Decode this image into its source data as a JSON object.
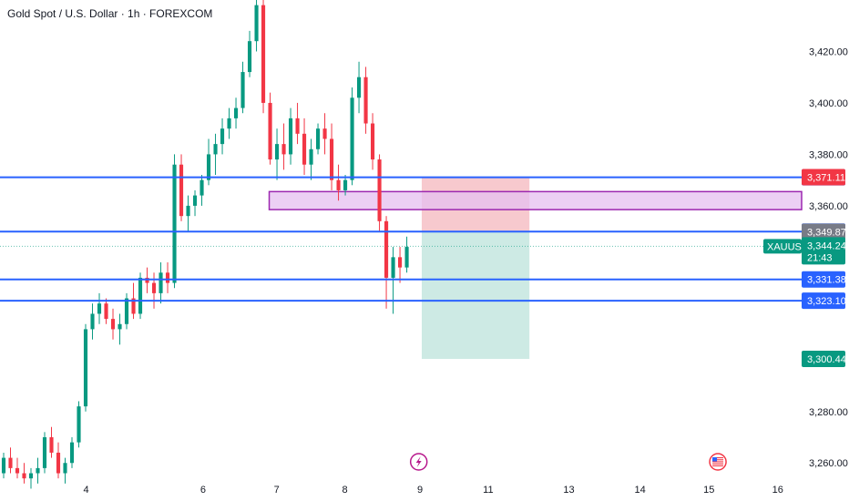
{
  "header": {
    "title": "Gold Spot / U.S. Dollar · 1h · FOREXCOM"
  },
  "colors": {
    "up": "#089981",
    "down": "#f23645",
    "blue": "#2962ff",
    "purple": "#9c27b0",
    "gray": "#787b86",
    "green": "#089981",
    "red": "#f23645",
    "stopZone": "#f7c9ce",
    "targetZone": "#cdeae4",
    "rangeZone": "#e6bff0"
  },
  "chart_data": {
    "type": "candlestick",
    "symbol": "XAUUSD",
    "ylim": [
      3253,
      3440
    ],
    "y_ticks": [
      "3,420.00",
      "3,400.00",
      "3,380.00",
      "3,360.00",
      "3,280.00",
      "3,260.00"
    ],
    "y_tick_values": [
      3420,
      3400,
      3380,
      3360,
      3280,
      3260
    ],
    "x_ticks": [
      "4",
      "6",
      "7",
      "8",
      "9",
      "11",
      "13",
      "14",
      "15",
      "16"
    ],
    "x_tick_positions": [
      2.88,
      6.79,
      9.25,
      11.53,
      14.04,
      16.32,
      19.02,
      21.4,
      23.7,
      26.0
    ],
    "xlim": [
      0,
      26.8
    ],
    "candles": [
      [
        3256,
        3264,
        3254,
        3262
      ],
      [
        3262,
        3266,
        3256,
        3258
      ],
      [
        3258,
        3262,
        3254,
        3256
      ],
      [
        3256,
        3260,
        3252,
        3254
      ],
      [
        3254,
        3258,
        3250,
        3256
      ],
      [
        3256,
        3262,
        3252,
        3258
      ],
      [
        3258,
        3272,
        3256,
        3270
      ],
      [
        3270,
        3274,
        3262,
        3264
      ],
      [
        3264,
        3268,
        3254,
        3256
      ],
      [
        3256,
        3262,
        3252,
        3260
      ],
      [
        3260,
        3270,
        3258,
        3268
      ],
      [
        3268,
        3284,
        3266,
        3282
      ],
      [
        3282,
        3314,
        3280,
        3312
      ],
      [
        3312,
        3322,
        3308,
        3318
      ],
      [
        3318,
        3326,
        3314,
        3322
      ],
      [
        3322,
        3324,
        3314,
        3316
      ],
      [
        3316,
        3320,
        3308,
        3312
      ],
      [
        3312,
        3318,
        3306,
        3314
      ],
      [
        3314,
        3326,
        3312,
        3324
      ],
      [
        3324,
        3330,
        3316,
        3318
      ],
      [
        3318,
        3334,
        3316,
        3332
      ],
      [
        3332,
        3336,
        3326,
        3330
      ],
      [
        3330,
        3334,
        3320,
        3326
      ],
      [
        3326,
        3338,
        3322,
        3334
      ],
      [
        3334,
        3338,
        3326,
        3330
      ],
      [
        3330,
        3380,
        3328,
        3376
      ],
      [
        3376,
        3380,
        3354,
        3356
      ],
      [
        3356,
        3364,
        3350,
        3360
      ],
      [
        3360,
        3366,
        3356,
        3364
      ],
      [
        3364,
        3372,
        3360,
        3370
      ],
      [
        3370,
        3386,
        3368,
        3380
      ],
      [
        3380,
        3388,
        3372,
        3384
      ],
      [
        3384,
        3394,
        3380,
        3390
      ],
      [
        3390,
        3398,
        3386,
        3394
      ],
      [
        3394,
        3402,
        3390,
        3398
      ],
      [
        3398,
        3416,
        3396,
        3412
      ],
      [
        3412,
        3428,
        3410,
        3424
      ],
      [
        3424,
        3440,
        3420,
        3438
      ],
      [
        3438,
        3440,
        3396,
        3400
      ],
      [
        3400,
        3404,
        3376,
        3378
      ],
      [
        3378,
        3390,
        3370,
        3384
      ],
      [
        3384,
        3392,
        3374,
        3380
      ],
      [
        3380,
        3398,
        3376,
        3394
      ],
      [
        3394,
        3400,
        3384,
        3388
      ],
      [
        3388,
        3394,
        3372,
        3376
      ],
      [
        3376,
        3386,
        3370,
        3382
      ],
      [
        3382,
        3392,
        3380,
        3390
      ],
      [
        3390,
        3396,
        3380,
        3386
      ],
      [
        3386,
        3392,
        3366,
        3370
      ],
      [
        3370,
        3376,
        3362,
        3366
      ],
      [
        3366,
        3372,
        3364,
        3370
      ],
      [
        3370,
        3406,
        3368,
        3402
      ],
      [
        3402,
        3416,
        3396,
        3410
      ],
      [
        3410,
        3414,
        3388,
        3392
      ],
      [
        3392,
        3396,
        3374,
        3378
      ],
      [
        3378,
        3380,
        3350,
        3354
      ],
      [
        3354,
        3356,
        3320,
        3332
      ],
      [
        3332,
        3344,
        3318,
        3340
      ],
      [
        3340,
        3344,
        3330,
        3336
      ],
      [
        3336,
        3348,
        3334,
        3344
      ]
    ],
    "levels": [
      {
        "label": "3,371.08",
        "value": 3371.08
      },
      {
        "label": "3,349.97",
        "value": 3349.97
      },
      {
        "label": "3,331.38",
        "value": 3331.38
      },
      {
        "label": "3,323.10",
        "value": 3323.1
      }
    ],
    "price_tags": [
      {
        "label": "3,371.11",
        "value": 3371.11,
        "color": "#f23645"
      },
      {
        "label": "3,349.87",
        "value": 3349.87,
        "color": "#787b86"
      },
      {
        "label": "3,300.44",
        "value": 3300.44,
        "color": "#089981"
      }
    ],
    "current": {
      "symbol": "XAUUSD",
      "price": "3,344.24",
      "value": 3344.24,
      "countdown": "21:43"
    },
    "zones": {
      "range_box": {
        "x1": 9.0,
        "x2": 26.8,
        "y_top": 3365.5,
        "y_bottom": 3358.5
      },
      "stop": {
        "x1": 14.1,
        "x2": 17.7,
        "y_top": 3371.08,
        "y_bottom": 3349.97
      },
      "target": {
        "x1": 14.1,
        "x2": 17.7,
        "y_top": 3349.97,
        "y_bottom": 3300.44
      }
    },
    "event_icons": [
      {
        "name": "lightning-event-icon",
        "x": 14.0
      },
      {
        "name": "us-flag-event-icon",
        "x": 24.0
      }
    ]
  }
}
